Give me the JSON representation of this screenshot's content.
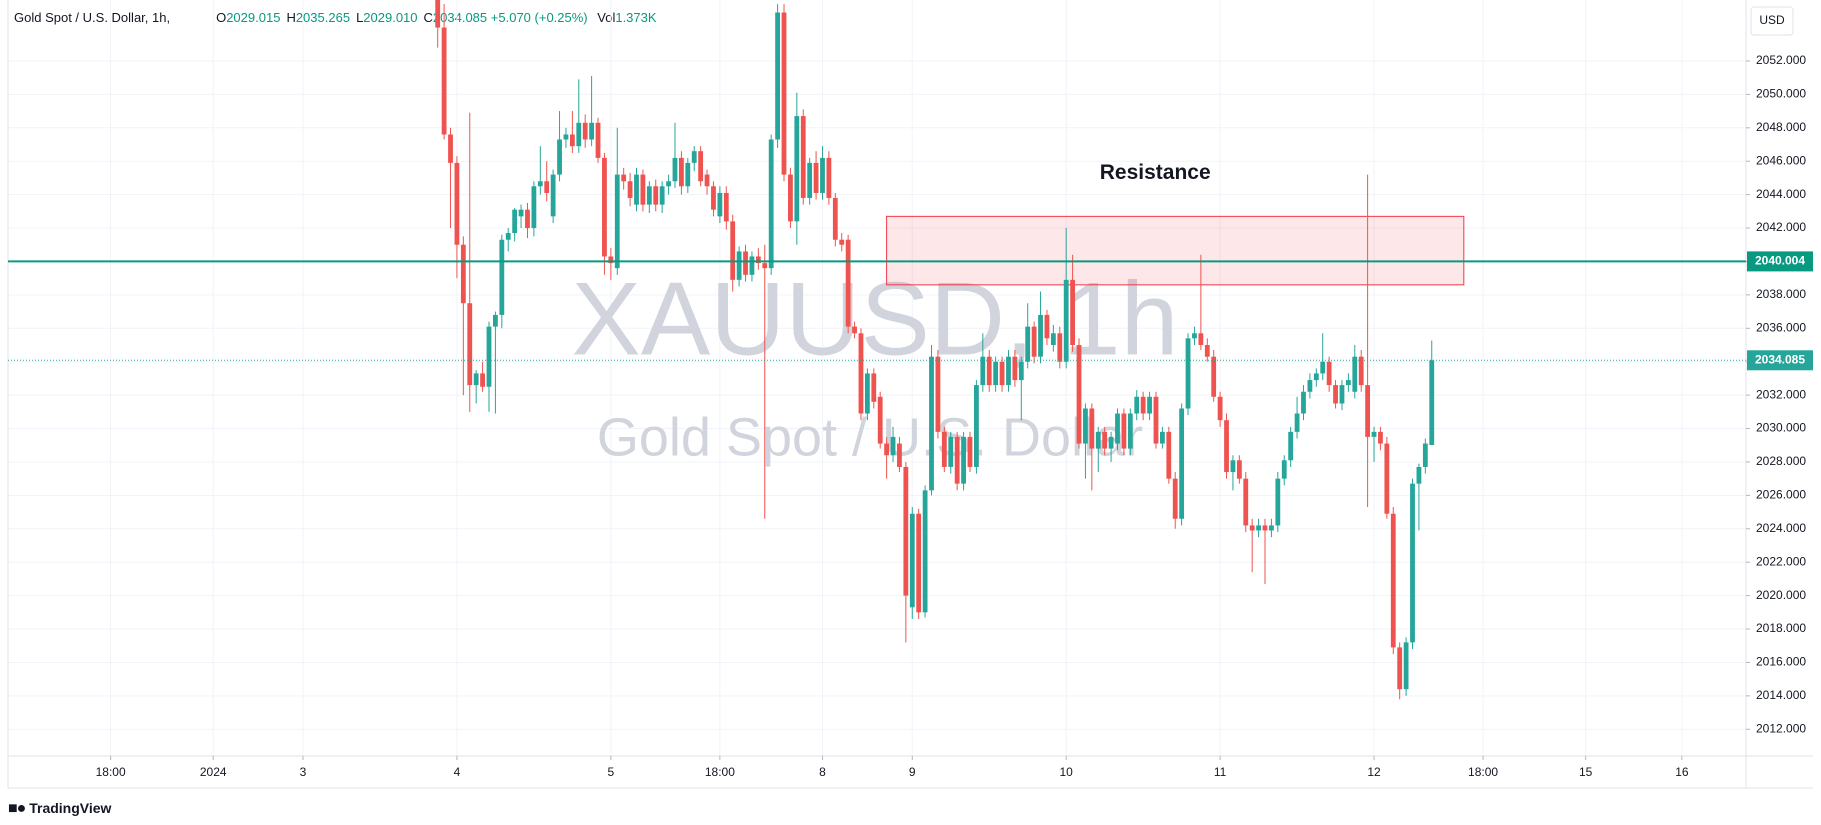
{
  "chart_data": {
    "type": "candlestick",
    "legend": {
      "symbol": "Gold Spot / U.S. Dollar, 1h,",
      "items": [
        {
          "key": "O",
          "value": "2029.015"
        },
        {
          "key": "H",
          "value": "2035.265"
        },
        {
          "key": "L",
          "value": "2029.010"
        },
        {
          "key": "C",
          "value": "2034.085"
        }
      ],
      "change": "+5.070 (+0.25%)",
      "volume_key": "Vol",
      "volume": "1.373K"
    },
    "watermark": {
      "ticker": "XAUUSD, 1h",
      "name": "Gold Spot / U.S. Dollar"
    },
    "currency": "USD",
    "brand": "TradingView",
    "up_color": "#26a69a",
    "down_color": "#ef5350",
    "grid": true,
    "xlim": [
      -67,
      204
    ],
    "xticks": [
      {
        "value": -51,
        "label": "18:00"
      },
      {
        "value": -35,
        "label": "2024"
      },
      {
        "value": -21,
        "label": "3"
      },
      {
        "value": 3,
        "label": "4"
      },
      {
        "value": 27,
        "label": "5"
      },
      {
        "value": 44,
        "label": "18:00"
      },
      {
        "value": 60,
        "label": "8"
      },
      {
        "value": 74,
        "label": "9"
      },
      {
        "value": 98,
        "label": "10"
      },
      {
        "value": 122,
        "label": "11"
      },
      {
        "value": 146,
        "label": "12"
      },
      {
        "value": 163,
        "label": "18:00"
      },
      {
        "value": 179,
        "label": "15"
      },
      {
        "value": 194,
        "label": "16"
      }
    ],
    "ylim": [
      2010.4,
      2055.35
    ],
    "yticks": [
      {
        "value": 2012,
        "label": "2012.000"
      },
      {
        "value": 2014,
        "label": "2014.000"
      },
      {
        "value": 2016,
        "label": "2016.000"
      },
      {
        "value": 2018,
        "label": "2018.000"
      },
      {
        "value": 2020,
        "label": "2020.000"
      },
      {
        "value": 2022,
        "label": "2022.000"
      },
      {
        "value": 2024,
        "label": "2024.000"
      },
      {
        "value": 2026,
        "label": "2026.000"
      },
      {
        "value": 2028,
        "label": "2028.000"
      },
      {
        "value": 2030,
        "label": "2030.000"
      },
      {
        "value": 2032,
        "label": "2032.000"
      },
      {
        "value": 2034,
        "label": "2034.000"
      },
      {
        "value": 2036,
        "label": "2036.000"
      },
      {
        "value": 2038,
        "label": "2038.000"
      },
      {
        "value": 2040,
        "label": "2040.000"
      },
      {
        "value": 2042,
        "label": "2042.000"
      },
      {
        "value": 2044,
        "label": "2044.000"
      },
      {
        "value": 2046,
        "label": "2046.000"
      },
      {
        "value": 2048,
        "label": "2048.000"
      },
      {
        "value": 2050,
        "label": "2050.000"
      },
      {
        "value": 2052,
        "label": "2052.000"
      }
    ],
    "hline": {
      "value": 2040.004,
      "color": "#089981"
    },
    "resistance_zone": {
      "label": "Resistance",
      "x": [
        70,
        160
      ],
      "y": [
        2038.6,
        2042.7
      ],
      "color": "#f23645"
    },
    "x": [
      0,
      1,
      2,
      3,
      4,
      5,
      6,
      7,
      8,
      9,
      10,
      11,
      12,
      13,
      14,
      15,
      16,
      17,
      18,
      19,
      20,
      21,
      22,
      23,
      24,
      25,
      26,
      27,
      28,
      29,
      30,
      31,
      32,
      33,
      34,
      35,
      36,
      37,
      38,
      39,
      40,
      41,
      42,
      43,
      44,
      45,
      46,
      47,
      48,
      49,
      50,
      51,
      52,
      53,
      54,
      55,
      56,
      57,
      58,
      59,
      60,
      61,
      62,
      63,
      64,
      65,
      66,
      67,
      68,
      69,
      70,
      71,
      72,
      73,
      74,
      75,
      76,
      77,
      78,
      79,
      80,
      81,
      82,
      83,
      84,
      85,
      86,
      87,
      88,
      89,
      90,
      91,
      92,
      93,
      94,
      95,
      96,
      97,
      98,
      99,
      100,
      101,
      102,
      103,
      104,
      105,
      106,
      107,
      108,
      109,
      110,
      111,
      112,
      113,
      114,
      115,
      116,
      117,
      118,
      119,
      120,
      121,
      122,
      123,
      124,
      125,
      126,
      127,
      128,
      129,
      130,
      131,
      132,
      133,
      134,
      135,
      136,
      137,
      138,
      139,
      140,
      141,
      142,
      143,
      144,
      145,
      146,
      147,
      148,
      149,
      150,
      151,
      152,
      153,
      154,
      155
    ],
    "candles": [
      [
        2056.5,
        2057.5,
        2052.8,
        2054.0
      ],
      [
        2054.0,
        2055.4,
        2047.3,
        2047.6
      ],
      [
        2047.6,
        2048.0,
        2042.0,
        2045.9
      ],
      [
        2045.9,
        2046.3,
        2039.0,
        2041.0
      ],
      [
        2041.0,
        2041.5,
        2032.0,
        2037.5
      ],
      [
        2037.5,
        2048.9,
        2031.0,
        2032.6
      ],
      [
        2032.6,
        2033.5,
        2031.5,
        2033.3
      ],
      [
        2033.3,
        2034.0,
        2032.2,
        2032.5
      ],
      [
        2032.5,
        2036.4,
        2031.0,
        2036.1
      ],
      [
        2036.1,
        2037.0,
        2030.9,
        2036.8
      ],
      [
        2036.8,
        2041.6,
        2036.0,
        2041.3
      ],
      [
        2041.3,
        2042.0,
        2040.6,
        2041.7
      ],
      [
        2041.7,
        2043.2,
        2041.2,
        2043.1
      ],
      [
        2042.7,
        2043.4,
        2042.0,
        2043.1
      ],
      [
        2043.1,
        2043.5,
        2041.4,
        2042.0
      ],
      [
        2042.0,
        2044.8,
        2041.5,
        2044.5
      ],
      [
        2044.5,
        2046.9,
        2044.0,
        2044.8
      ],
      [
        2044.8,
        2046.0,
        2043.6,
        2044.1
      ],
      [
        2042.7,
        2045.5,
        2042.3,
        2045.2
      ],
      [
        2045.2,
        2049.0,
        2044.8,
        2047.3
      ],
      [
        2047.3,
        2048.0,
        2046.8,
        2047.6
      ],
      [
        2047.6,
        2049.0,
        2046.5,
        2046.9
      ],
      [
        2046.9,
        2050.9,
        2046.5,
        2048.3
      ],
      [
        2048.3,
        2048.8,
        2046.8,
        2047.3
      ],
      [
        2047.3,
        2051.1,
        2046.9,
        2048.3
      ],
      [
        2048.3,
        2048.6,
        2045.9,
        2046.2
      ],
      [
        2046.2,
        2046.5,
        2039.2,
        2040.3
      ],
      [
        2040.3,
        2040.8,
        2038.9,
        2039.9
      ],
      [
        2039.6,
        2048.0,
        2039.2,
        2045.2
      ],
      [
        2045.2,
        2045.6,
        2044.3,
        2044.8
      ],
      [
        2044.8,
        2045.3,
        2043.3,
        2043.8
      ],
      [
        2043.4,
        2045.6,
        2043.0,
        2045.2
      ],
      [
        2045.2,
        2045.5,
        2043.0,
        2043.4
      ],
      [
        2043.4,
        2044.8,
        2042.9,
        2044.5
      ],
      [
        2044.5,
        2044.9,
        2043.0,
        2043.4
      ],
      [
        2043.4,
        2044.8,
        2042.9,
        2044.5
      ],
      [
        2044.5,
        2045.2,
        2044.0,
        2044.8
      ],
      [
        2044.8,
        2048.3,
        2044.4,
        2046.2
      ],
      [
        2046.2,
        2046.6,
        2044.0,
        2044.5
      ],
      [
        2044.5,
        2046.2,
        2044.1,
        2045.9
      ],
      [
        2045.9,
        2046.9,
        2045.4,
        2046.6
      ],
      [
        2046.6,
        2046.9,
        2044.5,
        2044.8
      ],
      [
        2045.2,
        2045.5,
        2044.0,
        2044.5
      ],
      [
        2044.5,
        2044.8,
        2042.7,
        2043.1
      ],
      [
        2042.7,
        2044.5,
        2042.3,
        2044.1
      ],
      [
        2044.1,
        2044.5,
        2041.9,
        2042.4
      ],
      [
        2042.4,
        2042.8,
        2038.2,
        2038.9
      ],
      [
        2038.9,
        2040.9,
        2038.5,
        2040.6
      ],
      [
        2040.6,
        2041.0,
        2038.8,
        2039.2
      ],
      [
        2039.2,
        2040.6,
        2038.8,
        2040.3
      ],
      [
        2040.3,
        2040.8,
        2039.5,
        2039.9
      ],
      [
        2039.9,
        2041.0,
        2024.6,
        2039.6
      ],
      [
        2039.6,
        2047.6,
        2039.2,
        2047.3
      ],
      [
        2047.3,
        2055.4,
        2046.8,
        2054.9
      ],
      [
        2054.9,
        2055.4,
        2044.8,
        2045.2
      ],
      [
        2045.2,
        2045.6,
        2042.0,
        2042.4
      ],
      [
        2042.4,
        2050.1,
        2041.0,
        2048.7
      ],
      [
        2048.7,
        2049.1,
        2043.4,
        2043.8
      ],
      [
        2043.8,
        2046.2,
        2043.4,
        2045.9
      ],
      [
        2045.9,
        2046.6,
        2043.7,
        2044.1
      ],
      [
        2044.1,
        2046.9,
        2043.7,
        2046.2
      ],
      [
        2046.2,
        2046.6,
        2043.4,
        2043.8
      ],
      [
        2043.8,
        2044.1,
        2040.9,
        2041.3
      ],
      [
        2041.3,
        2041.7,
        2040.6,
        2041.0
      ],
      [
        2041.3,
        2041.6,
        2035.7,
        2036.1
      ],
      [
        2036.1,
        2036.4,
        2035.4,
        2035.7
      ],
      [
        2035.7,
        2036.0,
        2030.5,
        2030.9
      ],
      [
        2030.9,
        2033.6,
        2030.5,
        2033.3
      ],
      [
        2033.3,
        2033.6,
        2031.2,
        2031.6
      ],
      [
        2031.9,
        2032.2,
        2028.8,
        2029.1
      ],
      [
        2029.1,
        2029.5,
        2027.0,
        2028.4
      ],
      [
        2028.4,
        2030.1,
        2028.0,
        2029.5
      ],
      [
        2029.1,
        2029.5,
        2027.4,
        2027.7
      ],
      [
        2027.7,
        2028.0,
        2017.2,
        2020.0
      ],
      [
        2019.3,
        2025.3,
        2018.6,
        2024.9
      ],
      [
        2024.9,
        2025.2,
        2018.6,
        2019.0
      ],
      [
        2019.0,
        2026.6,
        2018.7,
        2026.3
      ],
      [
        2026.3,
        2035.0,
        2026.0,
        2034.3
      ],
      [
        2034.3,
        2034.7,
        2029.4,
        2029.8
      ],
      [
        2029.8,
        2030.1,
        2027.4,
        2027.7
      ],
      [
        2027.7,
        2029.8,
        2027.3,
        2029.5
      ],
      [
        2029.5,
        2029.8,
        2026.3,
        2026.7
      ],
      [
        2026.7,
        2029.8,
        2026.3,
        2029.5
      ],
      [
        2029.5,
        2029.8,
        2027.4,
        2027.7
      ],
      [
        2027.7,
        2032.9,
        2027.3,
        2032.6
      ],
      [
        2032.6,
        2035.7,
        2032.2,
        2034.3
      ],
      [
        2034.3,
        2034.7,
        2032.2,
        2032.6
      ],
      [
        2032.6,
        2034.3,
        2032.2,
        2034.0
      ],
      [
        2034.0,
        2034.3,
        2032.2,
        2032.6
      ],
      [
        2032.6,
        2034.7,
        2032.2,
        2034.3
      ],
      [
        2034.3,
        2034.7,
        2032.5,
        2032.9
      ],
      [
        2032.9,
        2034.3,
        2030.5,
        2034.0
      ],
      [
        2034.0,
        2037.5,
        2033.6,
        2036.1
      ],
      [
        2036.1,
        2036.4,
        2033.9,
        2034.3
      ],
      [
        2034.3,
        2038.2,
        2033.9,
        2036.8
      ],
      [
        2036.8,
        2037.1,
        2035.0,
        2035.4
      ],
      [
        2035.0,
        2036.2,
        2034.6,
        2035.7
      ],
      [
        2035.7,
        2036.1,
        2033.6,
        2034.0
      ],
      [
        2034.0,
        2042.0,
        2033.6,
        2038.9
      ],
      [
        2038.9,
        2040.4,
        2034.6,
        2035.0
      ],
      [
        2035.0,
        2035.4,
        2028.8,
        2029.1
      ],
      [
        2029.1,
        2031.5,
        2027.0,
        2031.2
      ],
      [
        2031.2,
        2031.5,
        2026.3,
        2028.8
      ],
      [
        2028.8,
        2030.1,
        2027.4,
        2029.8
      ],
      [
        2029.8,
        2030.1,
        2028.4,
        2028.8
      ],
      [
        2028.8,
        2029.8,
        2028.0,
        2029.5
      ],
      [
        2029.1,
        2031.2,
        2028.7,
        2030.9
      ],
      [
        2030.9,
        2031.2,
        2028.4,
        2028.8
      ],
      [
        2028.8,
        2031.2,
        2028.4,
        2030.9
      ],
      [
        2030.9,
        2032.3,
        2030.5,
        2031.9
      ],
      [
        2031.9,
        2032.2,
        2030.5,
        2030.9
      ],
      [
        2030.9,
        2032.2,
        2030.5,
        2031.9
      ],
      [
        2031.9,
        2032.2,
        2028.8,
        2029.1
      ],
      [
        2029.1,
        2030.1,
        2028.8,
        2029.8
      ],
      [
        2029.8,
        2030.1,
        2026.7,
        2027.0
      ],
      [
        2027.0,
        2027.4,
        2024.0,
        2024.6
      ],
      [
        2024.6,
        2031.5,
        2024.2,
        2031.2
      ],
      [
        2031.2,
        2035.7,
        2030.8,
        2035.4
      ],
      [
        2035.4,
        2036.1,
        2035.0,
        2035.7
      ],
      [
        2035.7,
        2040.4,
        2034.7,
        2035.0
      ],
      [
        2035.0,
        2035.4,
        2034.0,
        2034.3
      ],
      [
        2034.3,
        2034.7,
        2031.6,
        2031.9
      ],
      [
        2031.9,
        2032.2,
        2030.1,
        2030.5
      ],
      [
        2030.5,
        2030.9,
        2027.0,
        2027.4
      ],
      [
        2027.4,
        2028.4,
        2026.3,
        2028.1
      ],
      [
        2028.1,
        2028.4,
        2026.7,
        2027.0
      ],
      [
        2027.0,
        2027.4,
        2023.8,
        2024.2
      ],
      [
        2024.2,
        2024.6,
        2021.4,
        2023.9
      ],
      [
        2023.9,
        2024.6,
        2023.5,
        2024.2
      ],
      [
        2024.2,
        2024.6,
        2020.7,
        2023.9
      ],
      [
        2023.9,
        2024.6,
        2023.5,
        2024.2
      ],
      [
        2024.2,
        2027.4,
        2023.8,
        2027.0
      ],
      [
        2027.0,
        2028.4,
        2026.6,
        2028.1
      ],
      [
        2028.1,
        2030.1,
        2027.7,
        2029.8
      ],
      [
        2029.8,
        2031.9,
        2029.4,
        2030.9
      ],
      [
        2030.9,
        2032.6,
        2030.5,
        2032.2
      ],
      [
        2032.2,
        2033.3,
        2031.8,
        2032.9
      ],
      [
        2032.9,
        2033.6,
        2032.5,
        2033.3
      ],
      [
        2033.3,
        2035.7,
        2032.9,
        2034.0
      ],
      [
        2034.0,
        2034.3,
        2032.2,
        2032.6
      ],
      [
        2032.6,
        2032.9,
        2031.2,
        2031.5
      ],
      [
        2031.5,
        2032.9,
        2031.1,
        2032.6
      ],
      [
        2032.6,
        2033.3,
        2032.2,
        2032.9
      ],
      [
        2032.2,
        2035.0,
        2031.8,
        2034.3
      ],
      [
        2034.3,
        2034.7,
        2032.2,
        2032.6
      ],
      [
        2032.6,
        2045.2,
        2025.3,
        2029.5
      ],
      [
        2029.5,
        2030.1,
        2028.0,
        2029.8
      ],
      [
        2029.8,
        2030.1,
        2028.7,
        2029.1
      ],
      [
        2029.1,
        2029.5,
        2024.6,
        2024.9
      ],
      [
        2024.9,
        2025.3,
        2016.5,
        2016.9
      ],
      [
        2016.9,
        2017.2,
        2013.8,
        2014.4
      ],
      [
        2014.4,
        2017.5,
        2014.0,
        2017.2
      ],
      [
        2017.2,
        2027.0,
        2016.8,
        2026.7
      ],
      [
        2026.7,
        2027.9,
        2023.9,
        2027.7
      ],
      [
        2027.7,
        2029.4,
        2027.3,
        2029.1
      ],
      [
        2029.015,
        2035.265,
        2029.01,
        2034.085
      ]
    ]
  }
}
